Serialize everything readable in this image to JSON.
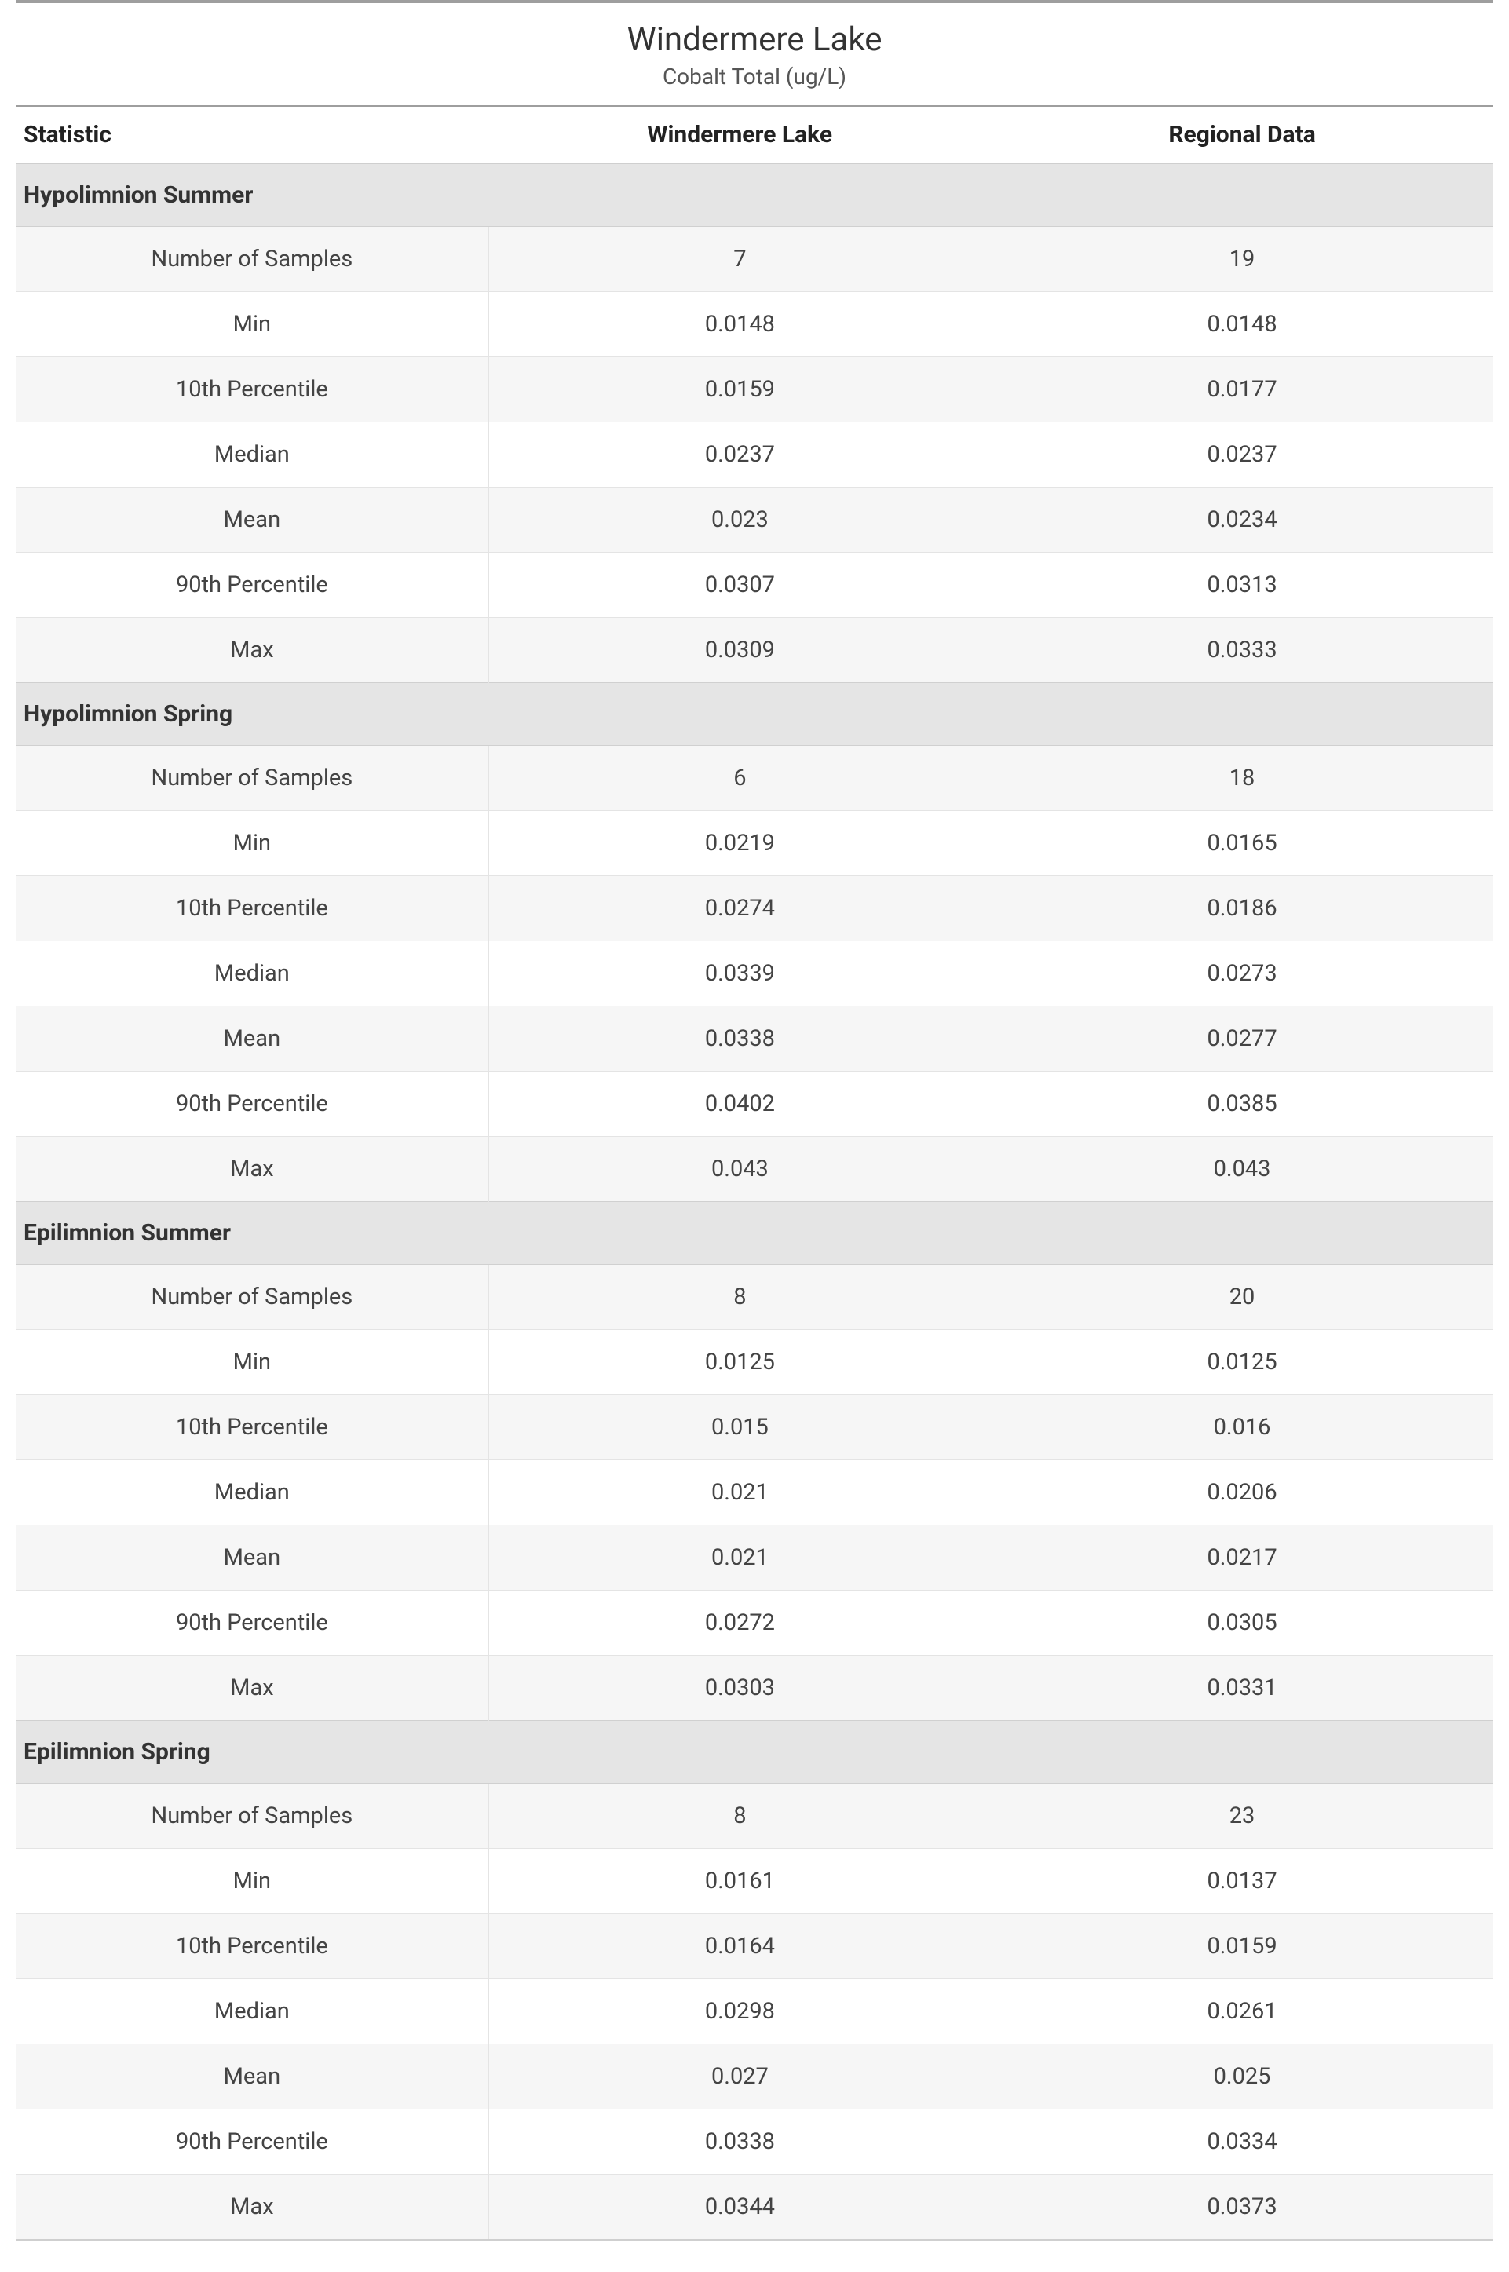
{
  "title": "Windermere Lake",
  "subtitle": "Cobalt Total (ug/L)",
  "columns": {
    "statistic": "Statistic",
    "lake": "Windermere Lake",
    "region": "Regional Data"
  },
  "stat_labels": {
    "samples": "Number of Samples",
    "min": "Min",
    "p10": "10th Percentile",
    "median": "Median",
    "mean": "Mean",
    "p90": "90th Percentile",
    "max": "Max"
  },
  "sections": [
    {
      "name": "Hypolimnion Summer",
      "rows": [
        {
          "stat": "samples",
          "lake": "7",
          "region": "19"
        },
        {
          "stat": "min",
          "lake": "0.0148",
          "region": "0.0148"
        },
        {
          "stat": "p10",
          "lake": "0.0159",
          "region": "0.0177"
        },
        {
          "stat": "median",
          "lake": "0.0237",
          "region": "0.0237"
        },
        {
          "stat": "mean",
          "lake": "0.023",
          "region": "0.0234"
        },
        {
          "stat": "p90",
          "lake": "0.0307",
          "region": "0.0313"
        },
        {
          "stat": "max",
          "lake": "0.0309",
          "region": "0.0333"
        }
      ]
    },
    {
      "name": "Hypolimnion Spring",
      "rows": [
        {
          "stat": "samples",
          "lake": "6",
          "region": "18"
        },
        {
          "stat": "min",
          "lake": "0.0219",
          "region": "0.0165"
        },
        {
          "stat": "p10",
          "lake": "0.0274",
          "region": "0.0186"
        },
        {
          "stat": "median",
          "lake": "0.0339",
          "region": "0.0273"
        },
        {
          "stat": "mean",
          "lake": "0.0338",
          "region": "0.0277"
        },
        {
          "stat": "p90",
          "lake": "0.0402",
          "region": "0.0385"
        },
        {
          "stat": "max",
          "lake": "0.043",
          "region": "0.043"
        }
      ]
    },
    {
      "name": "Epilimnion Summer",
      "rows": [
        {
          "stat": "samples",
          "lake": "8",
          "region": "20"
        },
        {
          "stat": "min",
          "lake": "0.0125",
          "region": "0.0125"
        },
        {
          "stat": "p10",
          "lake": "0.015",
          "region": "0.016"
        },
        {
          "stat": "median",
          "lake": "0.021",
          "region": "0.0206"
        },
        {
          "stat": "mean",
          "lake": "0.021",
          "region": "0.0217"
        },
        {
          "stat": "p90",
          "lake": "0.0272",
          "region": "0.0305"
        },
        {
          "stat": "max",
          "lake": "0.0303",
          "region": "0.0331"
        }
      ]
    },
    {
      "name": "Epilimnion Spring",
      "rows": [
        {
          "stat": "samples",
          "lake": "8",
          "region": "23"
        },
        {
          "stat": "min",
          "lake": "0.0161",
          "region": "0.0137"
        },
        {
          "stat": "p10",
          "lake": "0.0164",
          "region": "0.0159"
        },
        {
          "stat": "median",
          "lake": "0.0298",
          "region": "0.0261"
        },
        {
          "stat": "mean",
          "lake": "0.027",
          "region": "0.025"
        },
        {
          "stat": "p90",
          "lake": "0.0338",
          "region": "0.0334"
        },
        {
          "stat": "max",
          "lake": "0.0344",
          "region": "0.0373"
        }
      ]
    }
  ],
  "style": {
    "top_rule_color": "#9e9e9e",
    "section_bg": "#e5e5e5",
    "stripe_bg": "#f6f6f6",
    "border_color": "#e4e4e4",
    "header_border": "#cfcfcf",
    "text_color": "#333333",
    "title_fontsize": 42,
    "subtitle_fontsize": 28,
    "header_fontsize": 30,
    "cell_fontsize": 29
  }
}
